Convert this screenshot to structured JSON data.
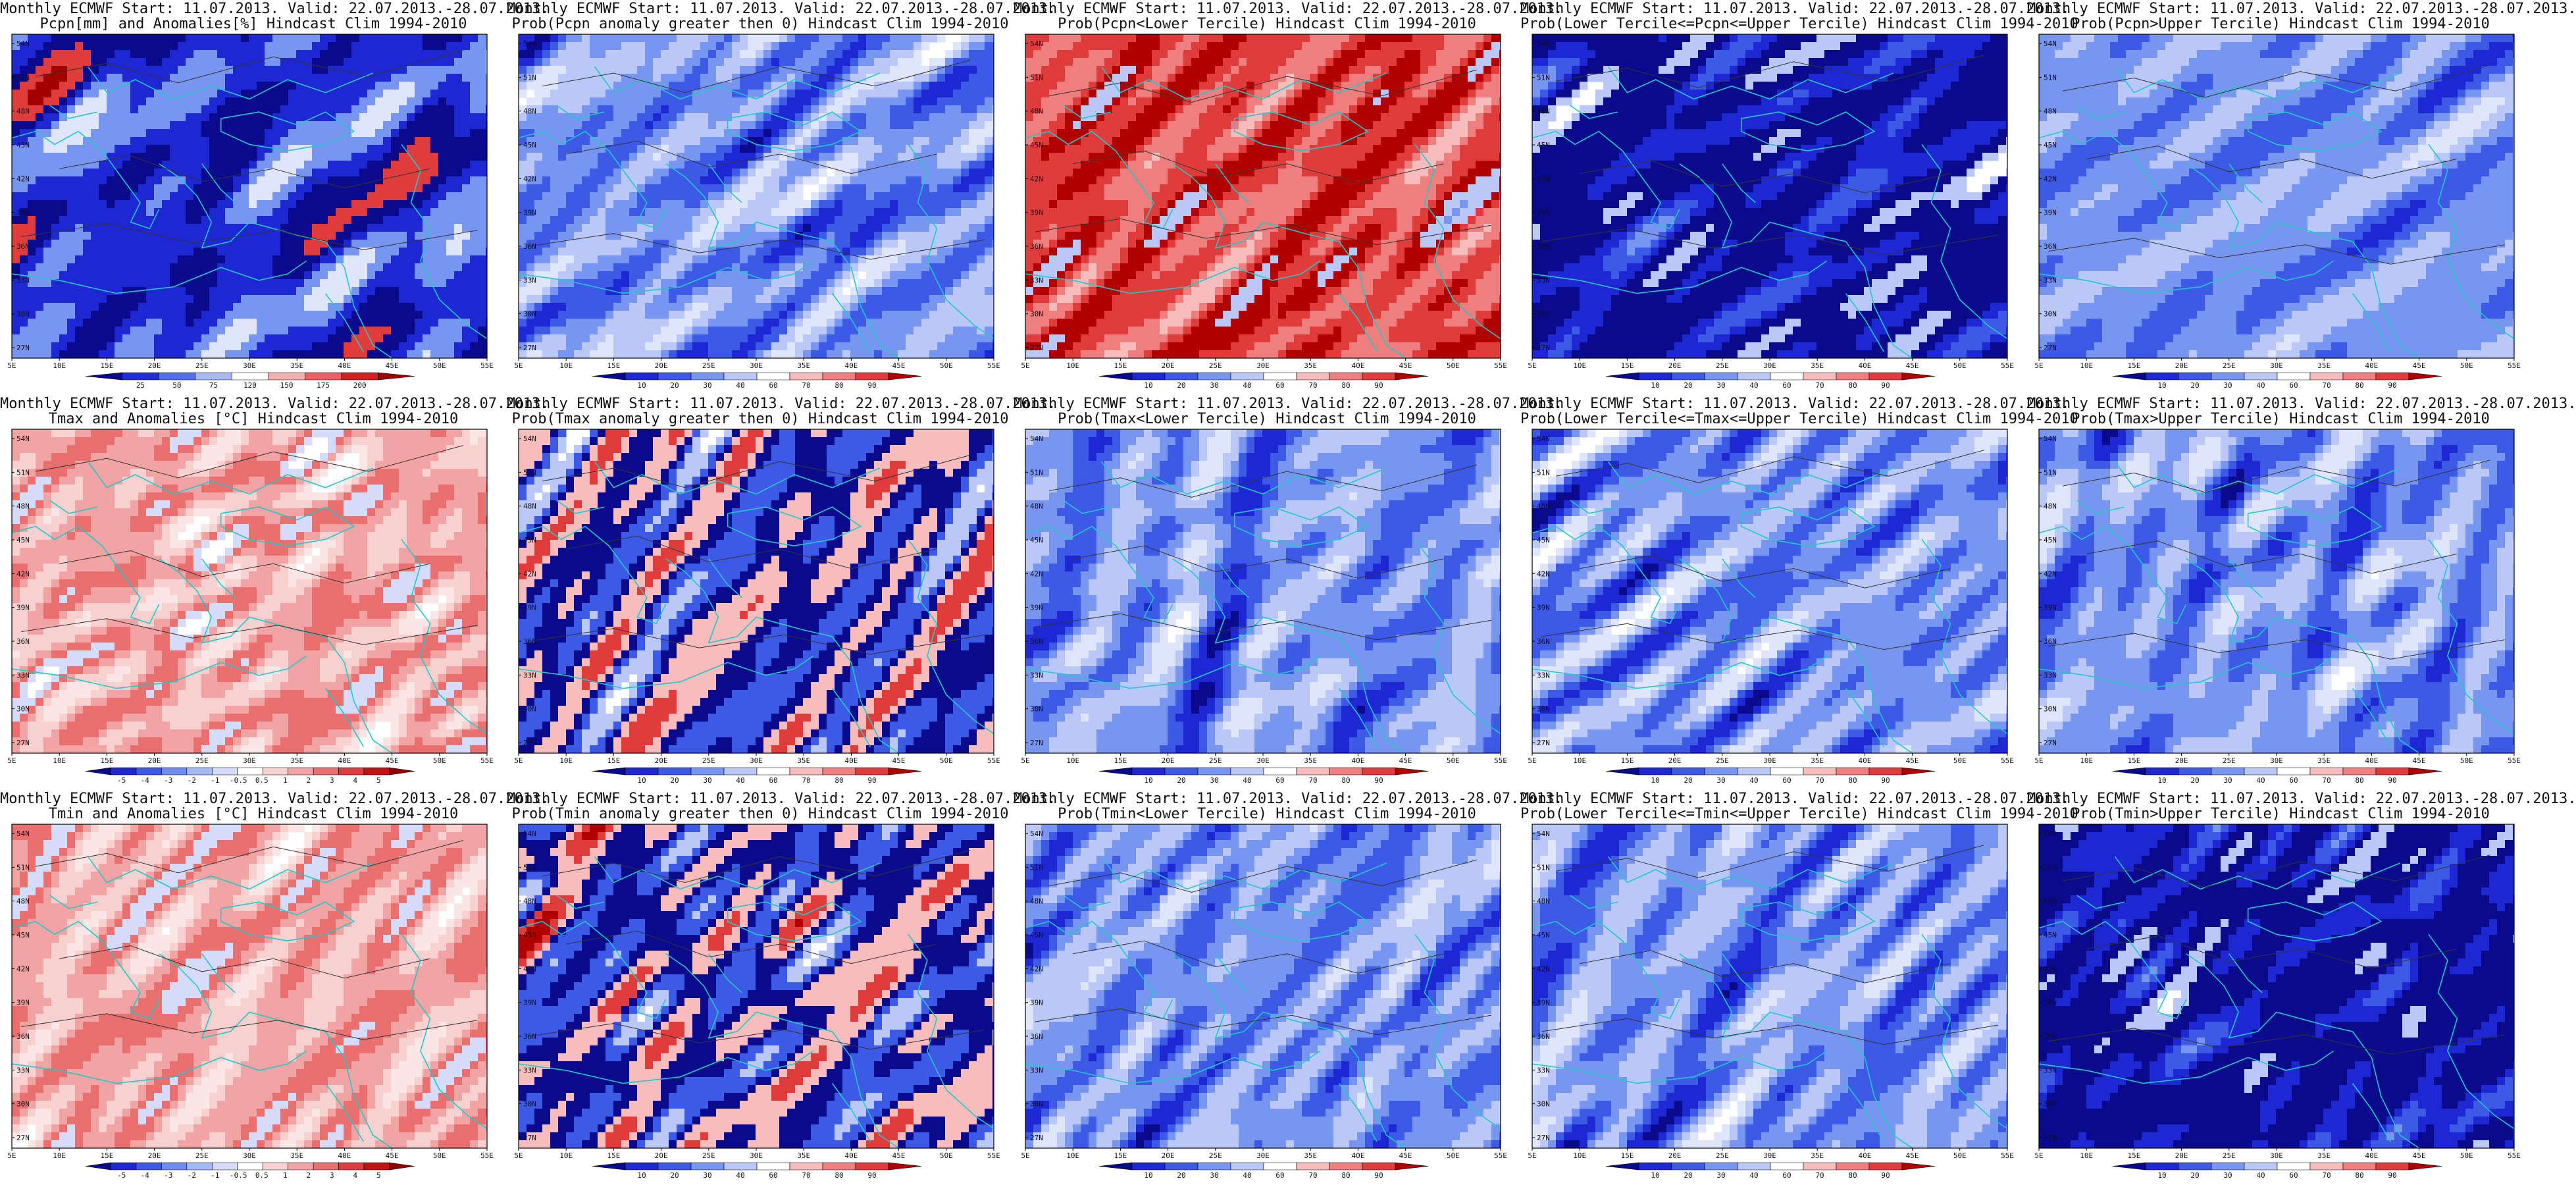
{
  "panels": [
    {
      "id": "r1c1",
      "title_line1": "Monthly ECMWF Start: 11.07.2013. Valid: 22.07.2013.-28.07.2013.",
      "title_line2": "Pcpn[mm] and Anomalies[%] Hindcast Clim 1994-2010",
      "colorbar": "precip_anom",
      "palette": "precip"
    },
    {
      "id": "r1c2",
      "title_line1": "Monthly ECMWF Start: 11.07.2013. Valid: 22.07.2013.-28.07.2013.",
      "title_line2": "Prob(Pcpn anomaly greater then 0) Hindcast Clim 1994-2010",
      "colorbar": "prob",
      "palette": "blue"
    },
    {
      "id": "r1c3",
      "title_line1": "Monthly ECMWF Start: 11.07.2013. Valid: 22.07.2013.-28.07.2013.",
      "title_line2": "Prob(Pcpn<Lower Tercile) Hindcast Clim 1994-2010",
      "colorbar": "prob",
      "palette": "red"
    },
    {
      "id": "r1c4",
      "title_line1": "Monthly ECMWF Start: 11.07.2013. Valid: 22.07.2013.-28.07.2013.",
      "title_line2": "Prob(Lower Tercile<=Pcpn<=Upper Tercile) Hindcast Clim 1994-2010",
      "colorbar": "prob",
      "palette": "deepblue"
    },
    {
      "id": "r1c5",
      "title_line1": "Monthly ECMWF Start: 11.07.2013. Valid: 22.07.2013.-28.07.2013.",
      "title_line2": "Prob(Pcpn>Upper Tercile) Hindcast Clim 1994-2010",
      "colorbar": "prob",
      "palette": "blue"
    },
    {
      "id": "r2c1",
      "title_line1": "Monthly ECMWF Start: 11.07.2013. Valid: 22.07.2013.-28.07.2013.",
      "title_line2": "Tmax and Anomalies [°C] Hindcast Clim 1994-2010",
      "colorbar": "temp_anom",
      "palette": "lightred"
    },
    {
      "id": "r2c2",
      "title_line1": "Monthly ECMWF Start: 11.07.2013. Valid: 22.07.2013.-28.07.2013.",
      "title_line2": "Prob(Tmax anomaly greater then 0) Hindcast Clim 1994-2010",
      "colorbar": "prob",
      "palette": "mixed"
    },
    {
      "id": "r2c3",
      "title_line1": "Monthly ECMWF Start: 11.07.2013. Valid: 22.07.2013.-28.07.2013.",
      "title_line2": "Prob(Tmax<Lower Tercile) Hindcast Clim 1994-2010",
      "colorbar": "prob",
      "palette": "blue"
    },
    {
      "id": "r2c4",
      "title_line1": "Monthly ECMWF Start: 11.07.2013. Valid: 22.07.2013.-28.07.2013.",
      "title_line2": "Prob(Lower Tercile<=Tmax<=Upper Tercile) Hindcast Clim 1994-2010",
      "colorbar": "prob",
      "palette": "blue"
    },
    {
      "id": "r2c5",
      "title_line1": "Monthly ECMWF Start: 11.07.2013. Valid: 22.07.2013.-28.07.2013.",
      "title_line2": "Prob(Tmax>Upper Tercile) Hindcast Clim 1994-2010",
      "colorbar": "prob",
      "palette": "blue"
    },
    {
      "id": "r3c1",
      "title_line1": "Monthly ECMWF Start: 11.07.2013. Valid: 22.07.2013.-28.07.2013.",
      "title_line2": "Tmin and Anomalies [°C] Hindcast Clim 1994-2010",
      "colorbar": "temp_anom",
      "palette": "lightred"
    },
    {
      "id": "r3c2",
      "title_line1": "Monthly ECMWF Start: 11.07.2013. Valid: 22.07.2013.-28.07.2013.",
      "title_line2": "Prob(Tmin anomaly greater then 0) Hindcast Clim 1994-2010",
      "colorbar": "prob",
      "palette": "mixed"
    },
    {
      "id": "r3c3",
      "title_line1": "Monthly ECMWF Start: 11.07.2013. Valid: 22.07.2013.-28.07.2013.",
      "title_line2": "Prob(Tmin<Lower Tercile) Hindcast Clim 1994-2010",
      "colorbar": "prob",
      "palette": "blue"
    },
    {
      "id": "r3c4",
      "title_line1": "Monthly ECMWF Start: 11.07.2013. Valid: 22.07.2013.-28.07.2013.",
      "title_line2": "Prob(Lower Tercile<=Tmin<=Upper Tercile) Hindcast Clim 1994-2010",
      "colorbar": "prob",
      "palette": "blue"
    },
    {
      "id": "r3c5",
      "title_line1": "Monthly ECMWF Start: 11.07.2013. Valid: 22.07.2013.-28.07.2013.",
      "title_line2": "Prob(Tmin>Upper Tercile) Hindcast Clim 1994-2010",
      "colorbar": "prob",
      "palette": "deepblue"
    }
  ],
  "axes": {
    "lon_labels": [
      "5E",
      "10E",
      "15E",
      "20E",
      "25E",
      "30E",
      "35E",
      "40E",
      "45E",
      "50E",
      "55E"
    ],
    "lat_labels": [
      "27N",
      "30N",
      "33N",
      "36N",
      "39N",
      "42N",
      "45N",
      "48N",
      "51N",
      "54N"
    ]
  },
  "colorbars": {
    "prob": {
      "labels": [
        "10",
        "20",
        "30",
        "40",
        "60",
        "70",
        "80",
        "90"
      ],
      "colors": [
        "#0a0a8c",
        "#1e28d2",
        "#3c5ae6",
        "#7896f0",
        "#b9c8f8",
        "#ffffff",
        "#f7bcbc",
        "#ef7e7e",
        "#e03c3c",
        "#b00000"
      ]
    },
    "precip_anom": {
      "labels": [
        "25",
        "50",
        "75",
        "120",
        "150",
        "175",
        "200"
      ],
      "colors": [
        "#0a0a8c",
        "#2030d2",
        "#5070ec",
        "#a8b8f4",
        "#ffffff",
        "#f4b0b0",
        "#e86060",
        "#d02020",
        "#a00000"
      ]
    },
    "temp_anom": {
      "labels": [
        "-5",
        "-4",
        "-3",
        "-2",
        "-1",
        "-0.5",
        "0.5",
        "1",
        "2",
        "3",
        "4",
        "5"
      ],
      "colors": [
        "#0a0a8c",
        "#1e28d2",
        "#3c5ae6",
        "#6e8cf0",
        "#a4b8f6",
        "#d4dcfa",
        "#ffffff",
        "#f8d0d0",
        "#f2a4a4",
        "#ea7070",
        "#dc3c3c",
        "#c01414",
        "#900000"
      ]
    }
  },
  "palettes": {
    "blue": [
      "#ffffff",
      "#dfe5fb",
      "#b9c8f8",
      "#7896f0",
      "#3c5ae6",
      "#1e28d2",
      "#0a0a8c"
    ],
    "deepblue": [
      "#7896f0",
      "#3c5ae6",
      "#1e28d2",
      "#0a0a8c",
      "#0a0a8c",
      "#b9c8f8",
      "#ffffff"
    ],
    "red": [
      "#ffffff",
      "#f7bcbc",
      "#ef7e7e",
      "#e03c3c",
      "#b00000",
      "#b9c8f8",
      "#7896f0"
    ],
    "mixed": [
      "#ffffff",
      "#b9c8f8",
      "#3c5ae6",
      "#0a0a8c",
      "#f7bcbc",
      "#e03c3c",
      "#b00000"
    ],
    "lightred": [
      "#ffffff",
      "#fbe6e6",
      "#f8d0d0",
      "#f2a4a4",
      "#ea7070",
      "#d4dcfa",
      "#ffffff"
    ],
    "precip": [
      "#ffffff",
      "#dfe5fb",
      "#7896f0",
      "#1e28d2",
      "#0a0a8c",
      "#e03c3c",
      "#a00000"
    ]
  },
  "colors": {
    "coastline": "#22c8c8",
    "contour": "#333333",
    "frame": "#000000"
  }
}
